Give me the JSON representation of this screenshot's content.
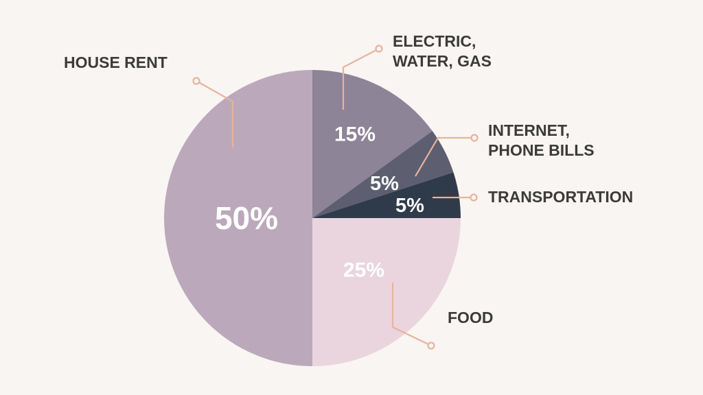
{
  "chart_data": {
    "type": "pie",
    "title": "",
    "background": "#f8f5f2",
    "slices": [
      {
        "label_lines": [
          "ELECTRIC,",
          "WATER, GAS"
        ],
        "value": 15,
        "value_label": "15%",
        "color": "#8d8497"
      },
      {
        "label_lines": [
          "INTERNET,",
          "PHONE BILLS"
        ],
        "value": 5,
        "value_label": "5%",
        "color": "#5d5e70"
      },
      {
        "label_lines": [
          "TRANSPORTATION"
        ],
        "value": 5,
        "value_label": "5%",
        "color": "#2f3b4a"
      },
      {
        "label_lines": [
          "FOOD"
        ],
        "value": 25,
        "value_label": "25%",
        "color": "#ead5de"
      },
      {
        "label_lines": [
          "HOUSE RENT"
        ],
        "value": 50,
        "value_label": "50%",
        "color": "#bba9bb"
      }
    ],
    "leader_color": "#e8b39c",
    "label_text_color": "#3b3b3b",
    "value_label_color": "#ffffff"
  }
}
